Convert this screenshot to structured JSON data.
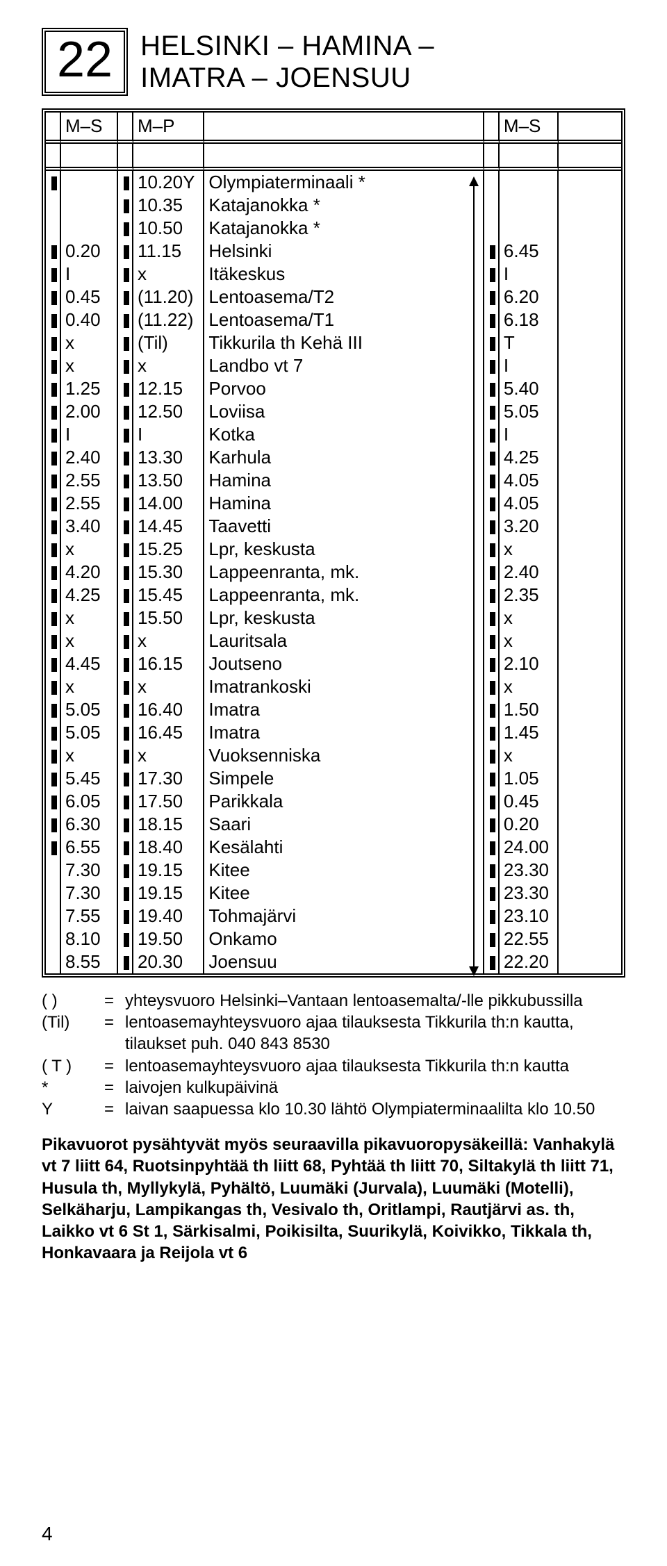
{
  "route_number": "22",
  "route_title_line1": "HELSINKI – HAMINA –",
  "route_title_line2": "IMATRA – JOENSUU",
  "columns": {
    "c1": "M–S",
    "c2": "M–P",
    "c3": "M–S"
  },
  "rows": [
    {
      "m1": "b",
      "t1": "",
      "m2": "b",
      "t2": "10.20Y",
      "stop": "Olympiaterminaali *",
      "m3": "",
      "t3": ""
    },
    {
      "m1": "",
      "t1": "",
      "m2": "b",
      "t2": "10.35",
      "stop": "Katajanokka *",
      "m3": "",
      "t3": ""
    },
    {
      "m1": "",
      "t1": "",
      "m2": "b",
      "t2": "10.50",
      "stop": "Katajanokka *",
      "m3": "",
      "t3": ""
    },
    {
      "m1": "b",
      "t1": "0.20",
      "m2": "b",
      "t2": "11.15",
      "stop": "Helsinki",
      "m3": "b",
      "t3": "6.45"
    },
    {
      "m1": "b",
      "t1": "I",
      "m2": "b",
      "t2": "x",
      "stop": "Itäkeskus",
      "m3": "b",
      "t3": "I"
    },
    {
      "m1": "b",
      "t1": "0.45",
      "m2": "b",
      "t2": "(11.20)",
      "stop": "Lentoasema/T2",
      "m3": "b",
      "t3": "6.20"
    },
    {
      "m1": "b",
      "t1": "0.40",
      "m2": "b",
      "t2": "(11.22)",
      "stop": "Lentoasema/T1",
      "m3": "b",
      "t3": "6.18"
    },
    {
      "m1": "b",
      "t1": "x",
      "m2": "b",
      "t2": "(Til)",
      "stop": "Tikkurila th Kehä III",
      "m3": "b",
      "t3": "T"
    },
    {
      "m1": "b",
      "t1": "x",
      "m2": "b",
      "t2": "x",
      "stop": "Landbo vt 7",
      "m3": "b",
      "t3": "I"
    },
    {
      "m1": "b",
      "t1": "1.25",
      "m2": "b",
      "t2": "12.15",
      "stop": "Porvoo",
      "m3": "b",
      "t3": "5.40"
    },
    {
      "m1": "b",
      "t1": "2.00",
      "m2": "b",
      "t2": "12.50",
      "stop": "Loviisa",
      "m3": "b",
      "t3": "5.05"
    },
    {
      "m1": "b",
      "t1": "I",
      "m2": "b",
      "t2": "I",
      "stop": "Kotka",
      "m3": "b",
      "t3": "I"
    },
    {
      "m1": "b",
      "t1": "2.40",
      "m2": "b",
      "t2": "13.30",
      "stop": "Karhula",
      "m3": "b",
      "t3": "4.25"
    },
    {
      "m1": "b",
      "t1": "2.55",
      "m2": "b",
      "t2": "13.50",
      "stop": "Hamina",
      "m3": "b",
      "t3": "4.05"
    },
    {
      "m1": "b",
      "t1": "2.55",
      "m2": "b",
      "t2": "14.00",
      "stop": "Hamina",
      "m3": "b",
      "t3": "4.05"
    },
    {
      "m1": "b",
      "t1": "3.40",
      "m2": "b",
      "t2": "14.45",
      "stop": "Taavetti",
      "m3": "b",
      "t3": "3.20"
    },
    {
      "m1": "b",
      "t1": "x",
      "m2": "b",
      "t2": "15.25",
      "stop": "Lpr, keskusta",
      "m3": "b",
      "t3": "x"
    },
    {
      "m1": "b",
      "t1": "4.20",
      "m2": "b",
      "t2": "15.30",
      "stop": "Lappeenranta, mk.",
      "m3": "b",
      "t3": "2.40"
    },
    {
      "m1": "b",
      "t1": "4.25",
      "m2": "b",
      "t2": "15.45",
      "stop": "Lappeenranta, mk.",
      "m3": "b",
      "t3": "2.35"
    },
    {
      "m1": "b",
      "t1": "x",
      "m2": "b",
      "t2": "15.50",
      "stop": "Lpr, keskusta",
      "m3": "b",
      "t3": "x"
    },
    {
      "m1": "b",
      "t1": "x",
      "m2": "b",
      "t2": "x",
      "stop": "Lauritsala",
      "m3": "b",
      "t3": "x"
    },
    {
      "m1": "b",
      "t1": "4.45",
      "m2": "b",
      "t2": "16.15",
      "stop": "Joutseno",
      "m3": "b",
      "t3": "2.10"
    },
    {
      "m1": "b",
      "t1": "x",
      "m2": "b",
      "t2": "x",
      "stop": "Imatrankoski",
      "m3": "b",
      "t3": "x"
    },
    {
      "m1": "b",
      "t1": "5.05",
      "m2": "b",
      "t2": "16.40",
      "stop": "Imatra",
      "m3": "b",
      "t3": "1.50"
    },
    {
      "m1": "b",
      "t1": "5.05",
      "m2": "b",
      "t2": "16.45",
      "stop": "Imatra",
      "m3": "b",
      "t3": "1.45"
    },
    {
      "m1": "b",
      "t1": "x",
      "m2": "b",
      "t2": "x",
      "stop": "Vuoksenniska",
      "m3": "b",
      "t3": "x"
    },
    {
      "m1": "b",
      "t1": "5.45",
      "m2": "b",
      "t2": "17.30",
      "stop": "Simpele",
      "m3": "b",
      "t3": "1.05"
    },
    {
      "m1": "b",
      "t1": "6.05",
      "m2": "b",
      "t2": "17.50",
      "stop": "Parikkala",
      "m3": "b",
      "t3": "0.45"
    },
    {
      "m1": "b",
      "t1": "6.30",
      "m2": "b",
      "t2": "18.15",
      "stop": "Saari",
      "m3": "b",
      "t3": "0.20"
    },
    {
      "m1": "b",
      "t1": "6.55",
      "m2": "b",
      "t2": "18.40",
      "stop": "Kesälahti",
      "m3": "b",
      "t3": "24.00"
    },
    {
      "m1": "",
      "t1": "7.30",
      "m2": "b",
      "t2": "19.15",
      "stop": "Kitee",
      "m3": "b",
      "t3": "23.30"
    },
    {
      "m1": "",
      "t1": "7.30",
      "m2": "b",
      "t2": "19.15",
      "stop": "Kitee",
      "m3": "b",
      "t3": "23.30"
    },
    {
      "m1": "",
      "t1": "7.55",
      "m2": "b",
      "t2": "19.40",
      "stop": "Tohmajärvi",
      "m3": "b",
      "t3": "23.10"
    },
    {
      "m1": "",
      "t1": "8.10",
      "m2": "b",
      "t2": "19.50",
      "stop": "Onkamo",
      "m3": "b",
      "t3": "22.55"
    },
    {
      "m1": "",
      "t1": "8.55",
      "m2": "b",
      "t2": "20.30",
      "stop": "Joensuu",
      "m3": "b",
      "t3": "22.20"
    }
  ],
  "legend": [
    {
      "key": "(  )",
      "text": "yhteysvuoro Helsinki–Vantaan lentoasemalta/-lle pikkubussilla"
    },
    {
      "key": "(Til)",
      "text": "lentoasemayhteysvuoro ajaa tilauksesta Tikkurila th:n kautta, tilaukset puh. 040 843 8530"
    },
    {
      "key": "( T )",
      "text": "lentoasemayhteysvuoro ajaa tilauksesta Tikkurila th:n kautta"
    },
    {
      "key": "*",
      "text": "laivojen kulkupäivinä"
    },
    {
      "key": "Y",
      "text": "laivan saapuessa klo 10.30 lähtö Olympiaterminaalilta klo 10.50"
    }
  ],
  "note": "Pikavuorot pysähtyvät myös seuraavilla pikavuoropysäkeillä: Vanhakylä vt 7 liitt 64, Ruotsinpyhtää th liitt 68, Pyhtää th liitt 70, Siltakylä th liitt 71, Husula th, Myllykylä, Pyhältö, Luumäki (Jurvala), Luumäki (Motelli), Selkäharju, Lampikangas th, Vesivalo th, Oritlampi, Rautjärvi as. th, Laikko vt 6 St 1, Särkisalmi, Poikisilta, Suurikylä, Koivikko, Tikkala th, Honkavaara ja Reijola vt 6",
  "page_number": "4"
}
